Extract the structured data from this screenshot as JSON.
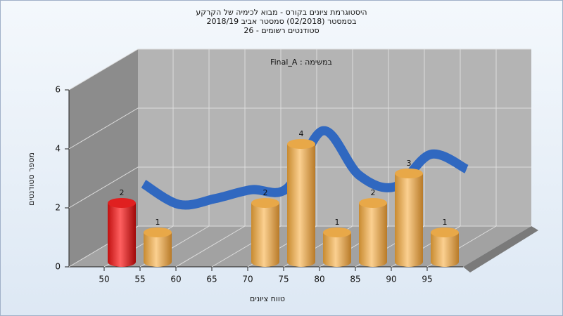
{
  "chart_data": {
    "type": "bar3d",
    "title_lines": [
      "היסטוגרמת ציונים בקורס - מבוא לכימיה של הקרקע",
      "בסמסטר  (02/2018)  סמסטר אביב 2018/19",
      "סטודנטים רשומים - 26"
    ],
    "subtitle": "Final_A : במשימה",
    "y_label": "מספר סטודנטים",
    "x_label": "טווח ציונים",
    "categories": [
      "50",
      "55",
      "60",
      "65",
      "70",
      "75",
      "80",
      "85",
      "90",
      "95"
    ],
    "values": [
      2,
      1,
      0,
      0,
      2,
      4,
      1,
      2,
      3,
      1
    ],
    "colors": [
      "#e02020",
      "#e8a848",
      "#e8a848",
      "#e8a848",
      "#e8a848",
      "#e8a848",
      "#e8a848",
      "#e8a848",
      "#e8a848",
      "#e8a848"
    ],
    "trend": {
      "color": "#3068c0",
      "values": [
        2.1,
        1.4,
        1.6,
        1.9,
        1.95,
        3.9,
        2.4,
        2.0,
        3.1,
        2.6
      ]
    },
    "ylim": [
      0,
      6
    ],
    "yticks": [
      0,
      2,
      4,
      6
    ],
    "grid": true
  }
}
